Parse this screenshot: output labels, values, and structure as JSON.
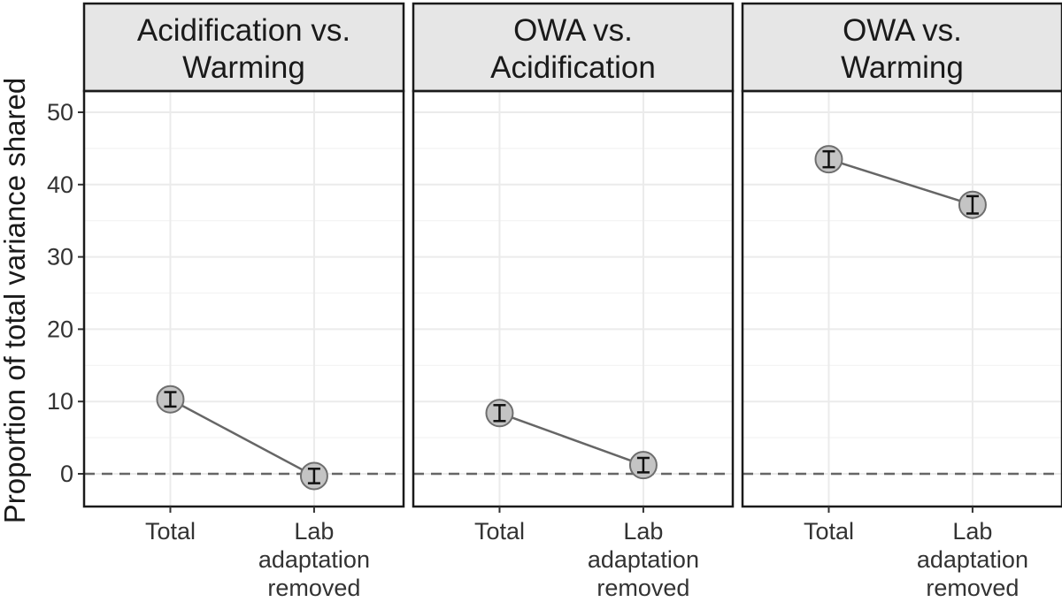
{
  "chart_data": {
    "type": "line",
    "ylabel": "Proportion of total variance shared",
    "xlabel": "",
    "ylim": [
      -4.5,
      55
    ],
    "yticks": [
      0,
      10,
      20,
      30,
      40,
      50
    ],
    "categories": [
      "Total",
      "Lab adaptation removed"
    ],
    "category_label_lines": [
      [
        "Total"
      ],
      [
        "Lab",
        "adaptation",
        "removed"
      ]
    ],
    "reference_line": {
      "y": 0,
      "style": "dashed"
    },
    "grid": true,
    "panels": [
      {
        "title_lines": [
          "Acidification vs.",
          "Warming"
        ],
        "values": [
          10.3,
          -0.3
        ],
        "errors": [
          [
            9.3,
            11.3
          ],
          [
            -1.3,
            0.7
          ]
        ]
      },
      {
        "title_lines": [
          "OWA vs.",
          "Acidification"
        ],
        "values": [
          8.4,
          1.2
        ],
        "errors": [
          [
            7.3,
            9.5
          ],
          [
            0.2,
            2.2
          ]
        ]
      },
      {
        "title_lines": [
          "OWA vs.",
          "Warming"
        ],
        "values": [
          43.5,
          37.2
        ],
        "errors": [
          [
            42.4,
            44.6
          ],
          [
            36.0,
            38.4
          ]
        ]
      }
    ],
    "colors": {
      "point_fill": "#c4c4c4",
      "point_stroke": "#6e6e6e",
      "line": "#666666",
      "errorbar": "#111111",
      "strip_fill": "#e6e6e6",
      "panel_border": "#1a1a1a",
      "grid": "#ebebeb",
      "zero_line": "#666666"
    }
  }
}
